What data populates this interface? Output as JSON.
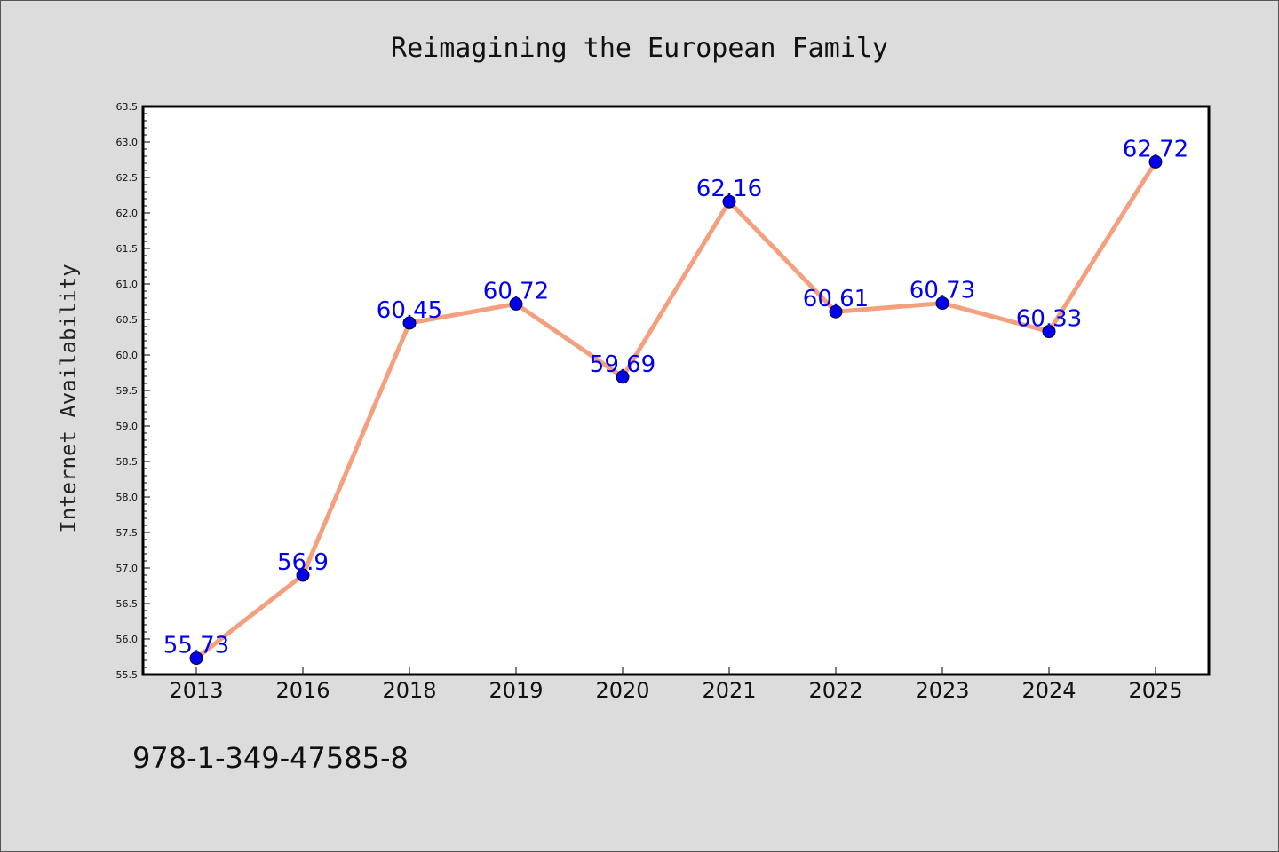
{
  "chart_data": {
    "type": "line",
    "title": "Reimagining the European Family",
    "xlabel": "",
    "ylabel": "Internet Availability",
    "categories": [
      "2013",
      "2016",
      "2018",
      "2019",
      "2020",
      "2021",
      "2022",
      "2023",
      "2024",
      "2025"
    ],
    "series": [
      {
        "values": [
          55.73,
          56.9,
          60.45,
          60.72,
          59.69,
          62.16,
          60.61,
          60.73,
          60.33,
          62.72
        ],
        "data_labels": [
          "55.73",
          "56.9",
          "60.45",
          "60.72",
          "59.69",
          "62.16",
          "60.61",
          "60.73",
          "60.33",
          "62.72"
        ],
        "line_color": "#f4a07f",
        "marker_color": "#0000ee"
      }
    ],
    "ylim": [
      55.5,
      63.5
    ],
    "yticks": [
      "55.5",
      "56.0",
      "56.5",
      "57.0",
      "57.5",
      "58.0",
      "58.5",
      "59.0",
      "59.5",
      "60.0",
      "60.5",
      "61.0",
      "61.5",
      "62.0",
      "62.5",
      "63.0",
      "63.5"
    ],
    "grid": false,
    "legend": "none"
  },
  "footer": {
    "isbn": "978-1-349-47585-8"
  },
  "colors": {
    "background": "#dcdcdc",
    "plot_area": "#ffffff",
    "line": "#f4a07f",
    "marker": "#0000ee",
    "data_label": "#0000ee"
  }
}
